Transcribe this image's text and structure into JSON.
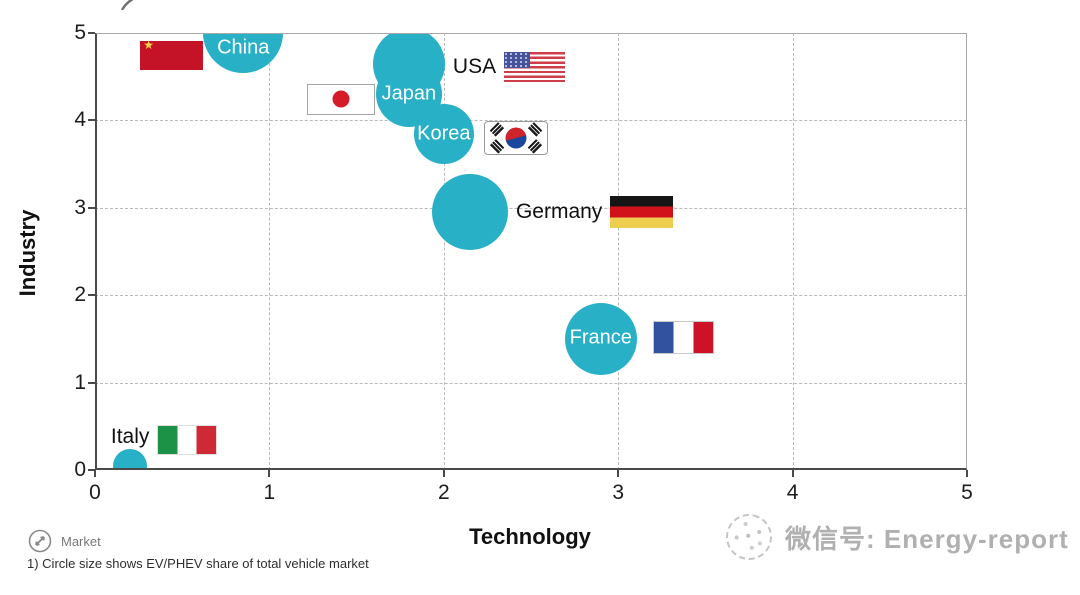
{
  "chart_data": {
    "type": "scatter",
    "title": "",
    "xlabel": "Technology",
    "ylabel": "Industry",
    "xlim": [
      0,
      5
    ],
    "ylim": [
      0,
      5
    ],
    "x_ticks": [
      "0",
      "1",
      "2",
      "3",
      "4",
      "5"
    ],
    "y_ticks": [
      "0",
      "1",
      "2",
      "3",
      "4",
      "5"
    ],
    "grid": "dashed",
    "legend_position": "bottom-left",
    "bubble_color": "#28b0c7",
    "bubble_label_color": "#ffffff",
    "size_encoding": "EV/PHEV share of total vehicle market",
    "points": [
      {
        "label": "China",
        "x": 0.85,
        "y": 5.0,
        "r": 40,
        "flag": "china-flag-icon"
      },
      {
        "label": "USA",
        "x": 1.8,
        "y": 4.65,
        "r": 36,
        "flag": "usa-flag-icon"
      },
      {
        "label": "Japan",
        "x": 1.8,
        "y": 4.3,
        "r": 33,
        "flag": "japan-flag-icon"
      },
      {
        "label": "Korea",
        "x": 2.0,
        "y": 3.85,
        "r": 30,
        "flag": "korea-flag-icon"
      },
      {
        "label": "Germany",
        "x": 2.15,
        "y": 2.95,
        "r": 38,
        "flag": "germany-flag-icon"
      },
      {
        "label": "France",
        "x": 2.9,
        "y": 1.5,
        "r": 36,
        "flag": "france-flag-icon"
      },
      {
        "label": "Italy",
        "x": 0.2,
        "y": 0.05,
        "r": 17,
        "flag": "italy-flag-icon"
      }
    ]
  },
  "legend": {
    "label": "Market"
  },
  "footnote": "1) Circle size shows EV/PHEV share of total vehicle market",
  "watermark": {
    "text": "微信号: Energy-report"
  }
}
